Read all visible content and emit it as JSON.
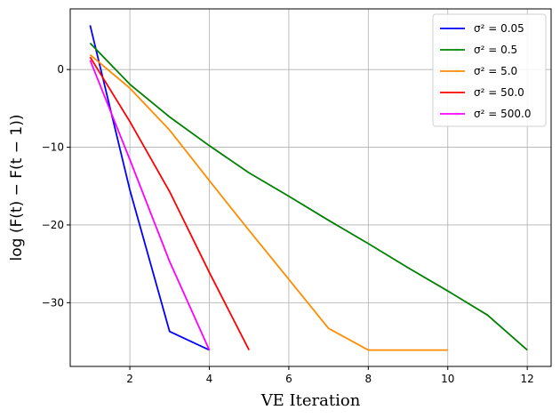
{
  "chart_data": {
    "type": "line",
    "xlabel": "VE Iteration",
    "ylabel": "log (F(t) − F(t − 1))",
    "xlim": [
      0.5,
      12.6
    ],
    "ylim": [
      -38.2,
      7.8
    ],
    "xticks": [
      2,
      4,
      6,
      8,
      10,
      12
    ],
    "yticks": [
      0,
      -10,
      -20,
      -30
    ],
    "grid": true,
    "legend_position": "top-right",
    "series": [
      {
        "name": "σ² = 0.05",
        "color": "#0000ff",
        "x": [
          1,
          2,
          3,
          4
        ],
        "y": [
          5.7,
          -15.5,
          -33.7,
          -36.1
        ]
      },
      {
        "name": "σ² = 0.5",
        "color": "#008000",
        "x": [
          1,
          2,
          3,
          4,
          5,
          6,
          7,
          8,
          9,
          10,
          11,
          12
        ],
        "y": [
          3.4,
          -1.9,
          -6.1,
          -9.8,
          -13.3,
          -16.3,
          -19.4,
          -22.4,
          -25.5,
          -28.5,
          -31.6,
          -36.1
        ]
      },
      {
        "name": "σ² = 5.0",
        "color": "#ff8c00",
        "x": [
          1,
          2,
          3,
          4,
          5,
          6,
          7,
          8,
          9,
          10
        ],
        "y": [
          1.9,
          -2.4,
          -7.8,
          -14.3,
          -20.7,
          -27.0,
          -33.3,
          -36.1,
          -36.1,
          -36.1
        ]
      },
      {
        "name": "σ² = 50.0",
        "color": "#ff0000",
        "x": [
          1,
          2,
          3,
          4,
          5
        ],
        "y": [
          1.6,
          -6.7,
          -15.7,
          -26.1,
          -36.1
        ]
      },
      {
        "name": "σ² = 500.0",
        "color": "#ff00ff",
        "x": [
          1,
          2,
          3,
          4
        ],
        "y": [
          1.2,
          -11.6,
          -24.7,
          -36.1
        ]
      }
    ]
  }
}
